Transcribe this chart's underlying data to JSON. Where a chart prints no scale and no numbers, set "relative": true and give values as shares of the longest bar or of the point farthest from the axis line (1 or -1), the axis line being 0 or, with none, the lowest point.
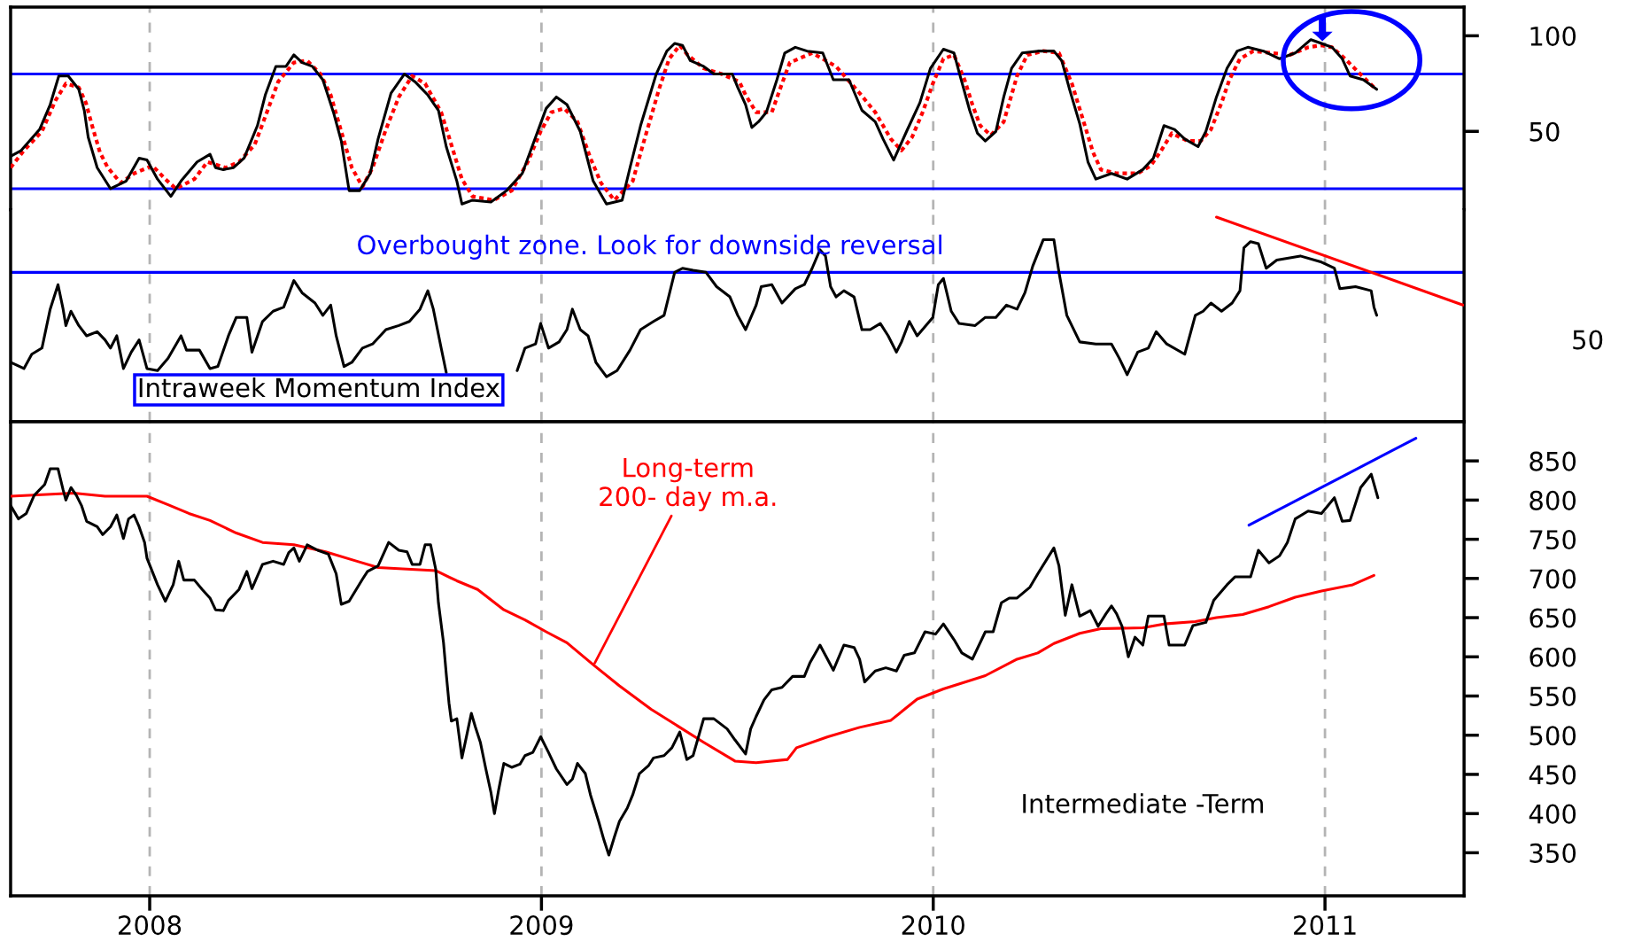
{
  "chart_data": [
    {
      "type": "line",
      "xlim": [
        2007.645,
        2011.355
      ],
      "ylim": [
        9,
        115
      ],
      "yticks": [
        50,
        100
      ],
      "xticks": [
        2008,
        2009,
        2010,
        2011
      ],
      "grid": "x",
      "tick_labels": "y",
      "ref_lines": [
        {
          "axis": "y",
          "value": 80,
          "color": "#0000ff"
        },
        {
          "axis": "y",
          "value": 20,
          "color": "#0000ff"
        }
      ],
      "series": [
        {
          "color": "#ff0000",
          "line_style": "dotted",
          "x": [
            2007.645,
            2007.679,
            2007.725,
            2007.759,
            2007.786,
            2007.819,
            2007.837,
            2007.853,
            2007.873,
            2007.893,
            2007.926,
            2007.96,
            2008.007,
            2008.04,
            2008.067,
            2008.114,
            2008.147,
            2008.194,
            2008.228,
            2008.268,
            2008.301,
            2008.328,
            2008.368,
            2008.402,
            2008.436,
            2008.462,
            2008.496,
            2008.516,
            2008.543,
            2008.569,
            2008.603,
            2008.636,
            2008.67,
            2008.703,
            2008.744,
            2008.77,
            2008.797,
            2008.824,
            2008.878,
            2008.924,
            2008.965,
            2008.998,
            2009.025,
            2009.058,
            2009.092,
            2009.125,
            2009.152,
            2009.186,
            2009.233,
            2009.259,
            2009.3,
            2009.326,
            2009.353,
            2009.373,
            2009.414,
            2009.46,
            2009.505,
            2009.521,
            2009.548,
            2009.588,
            2009.614,
            2009.634,
            2009.691,
            2009.752,
            2009.812,
            2009.852,
            2009.892,
            2009.919,
            2009.946,
            2009.973,
            2009.999,
            2010.026,
            2010.053,
            2010.08,
            2010.1,
            2010.12,
            2010.147,
            2010.18,
            2010.214,
            2010.24,
            2010.281,
            2010.321,
            2010.354,
            2010.381,
            2010.408,
            2010.428,
            2010.468,
            2010.522,
            2010.555,
            2010.582,
            2010.609,
            2010.649,
            2010.683,
            2010.709,
            2010.736,
            2010.756,
            2010.783,
            2010.817,
            2010.864,
            2010.91,
            2010.957,
            2010.991,
            2011.018,
            2011.051,
            2011.085,
            2011.125
          ],
          "values": [
            31,
            40,
            50,
            66,
            75,
            73,
            65,
            53,
            39,
            31,
            23,
            28,
            32,
            25,
            20,
            25,
            34,
            31,
            34,
            43,
            61,
            76,
            86,
            87,
            80,
            69,
            45,
            31,
            21,
            31,
            51,
            68,
            79,
            75,
            60,
            43,
            25,
            16,
            14,
            19,
            34,
            50,
            60,
            62,
            55,
            36,
            23,
            14,
            24,
            43,
            72,
            88,
            95,
            90,
            83,
            80,
            76,
            69,
            60,
            60,
            75,
            86,
            91,
            84,
            70,
            60,
            46,
            40,
            47,
            60,
            75,
            88,
            90,
            77,
            64,
            53,
            48,
            55,
            79,
            90,
            92,
            91,
            75,
            57,
            39,
            30,
            28,
            28,
            32,
            40,
            49,
            45,
            45,
            51,
            65,
            77,
            88,
            92,
            91,
            90,
            94,
            95,
            94,
            88,
            81,
            73
          ]
        },
        {
          "color": "#000000",
          "line_style": "solid",
          "x": [
            2007.645,
            2007.672,
            2007.719,
            2007.746,
            2007.768,
            2007.792,
            2007.819,
            2007.833,
            2007.843,
            2007.866,
            2007.9,
            2007.94,
            2007.973,
            2007.993,
            2008.02,
            2008.054,
            2008.08,
            2008.121,
            2008.154,
            2008.168,
            2008.188,
            2008.214,
            2008.241,
            2008.275,
            2008.295,
            2008.322,
            2008.348,
            2008.368,
            2008.389,
            2008.415,
            2008.442,
            2008.469,
            2008.489,
            2008.509,
            2008.536,
            2008.563,
            2008.583,
            2008.616,
            2008.65,
            2008.677,
            2008.71,
            2008.737,
            2008.757,
            2008.784,
            2008.797,
            2008.824,
            2008.871,
            2008.911,
            2008.951,
            2008.985,
            2009.012,
            2009.038,
            2009.065,
            2009.099,
            2009.132,
            2009.166,
            2009.206,
            2009.226,
            2009.253,
            2009.293,
            2009.32,
            2009.34,
            2009.36,
            2009.38,
            2009.414,
            2009.44,
            2009.487,
            2009.501,
            2009.521,
            2009.537,
            2009.554,
            2009.574,
            2009.601,
            2009.621,
            2009.648,
            2009.678,
            2009.718,
            2009.745,
            2009.785,
            2009.818,
            2009.852,
            2009.872,
            2009.899,
            2009.932,
            2009.966,
            2009.993,
            2010.026,
            2010.053,
            2010.066,
            2010.093,
            2010.113,
            2010.133,
            2010.16,
            2010.18,
            2010.2,
            2010.227,
            2010.267,
            2010.308,
            2010.328,
            2010.348,
            2010.374,
            2010.395,
            2010.415,
            2010.455,
            2010.495,
            2010.535,
            2010.562,
            2010.589,
            2010.616,
            2010.642,
            2010.676,
            2010.696,
            2010.723,
            2010.75,
            2010.776,
            2010.803,
            2010.843,
            2010.884,
            2010.924,
            2010.964,
            2010.991,
            2011.018,
            2011.044,
            2011.064,
            2011.098,
            2011.132
          ],
          "values": [
            37,
            40,
            51,
            64,
            79,
            79,
            72,
            61,
            47,
            31,
            20,
            24,
            36,
            35,
            25,
            16,
            24,
            34,
            38,
            31,
            30,
            31,
            36,
            53,
            69,
            84,
            84,
            90,
            86,
            84,
            77,
            60,
            45,
            19,
            19,
            28,
            46,
            70,
            80,
            76,
            69,
            61,
            42,
            24,
            12,
            14,
            13,
            19,
            28,
            47,
            62,
            68,
            64,
            50,
            24,
            12,
            14,
            31,
            53,
            80,
            92,
            96,
            95,
            87,
            84,
            80,
            80,
            73,
            64,
            52,
            55,
            60,
            77,
            91,
            94,
            92,
            91,
            77,
            77,
            61,
            55,
            46,
            35,
            50,
            65,
            83,
            93,
            91,
            81,
            61,
            49,
            45,
            50,
            68,
            83,
            91,
            92,
            92,
            87,
            72,
            54,
            34,
            25,
            28,
            25,
            30,
            36,
            53,
            51,
            46,
            42,
            50,
            68,
            83,
            92,
            94,
            92,
            88,
            91,
            98,
            96,
            94,
            88,
            79,
            77,
            72
          ]
        }
      ]
    },
    {
      "type": "line",
      "relative": true,
      "xlim": [
        2007.645,
        2011.355
      ],
      "xticks": [
        2008,
        2009,
        2010,
        2011
      ],
      "grid": "x",
      "tick_labels": "y",
      "ref_lines": [
        {
          "axis": "y",
          "value": 0.73,
          "color": "#0000ff"
        }
      ],
      "annotations": [
        "Overbought zone. Look for downside reversal",
        "Intraweek Momentum Index",
        "50"
      ],
      "series": [
        {
          "color": "#000000",
          "line_style": "solid",
          "x": [
            2007.645,
            2007.679,
            2007.699,
            2007.725,
            2007.746,
            2007.766,
            2007.779,
            2007.786,
            2007.799,
            2007.819,
            2007.839,
            2007.866,
            2007.886,
            2007.9,
            2007.916,
            2007.933,
            2007.953,
            2007.973,
            2007.993,
            2008.02,
            2008.047,
            2008.08,
            2008.094,
            2008.127,
            2008.154,
            2008.174,
            2008.201,
            2008.221,
            2008.248,
            2008.261,
            2008.288,
            2008.315,
            2008.342,
            2008.368,
            2008.389,
            2008.422,
            2008.442,
            2008.462,
            2008.476,
            2008.496,
            2008.516,
            2008.543,
            2008.569,
            2008.603,
            2008.636,
            2008.663,
            2008.69,
            2008.71,
            2008.724,
            2008.744,
            2008.757,
            2008.844,
            2008.938,
            2008.958,
            2008.985,
            2008.998,
            2009.018,
            2009.045,
            2009.065,
            2009.079,
            2009.099,
            2009.119,
            2009.139,
            2009.166,
            2009.193,
            2009.226,
            2009.253,
            2009.286,
            2009.313,
            2009.34,
            2009.36,
            2009.387,
            2009.42,
            2009.447,
            2009.481,
            2009.501,
            2009.521,
            2009.548,
            2009.561,
            2009.588,
            2009.614,
            2009.648,
            2009.671,
            2009.691,
            2009.711,
            2009.725,
            2009.738,
            2009.752,
            2009.772,
            2009.798,
            2009.818,
            2009.839,
            2009.865,
            2009.885,
            2009.906,
            2009.919,
            2009.939,
            2009.959,
            2009.986,
            2009.999,
            2010.013,
            2010.026,
            2010.046,
            2010.066,
            2010.107,
            2010.133,
            2010.16,
            2010.187,
            2010.214,
            2010.234,
            2010.254,
            2010.281,
            2010.308,
            2010.321,
            2010.341,
            2010.374,
            2010.415,
            2010.455,
            2010.475,
            2010.495,
            2010.522,
            2010.549,
            2010.569,
            2010.596,
            2010.642,
            2010.669,
            2010.689,
            2010.709,
            2010.736,
            2010.763,
            2010.783,
            2010.793,
            2010.81,
            2010.83,
            2010.85,
            2010.877,
            2010.937,
            2010.991,
            2011.024,
            2011.038,
            2011.078,
            2011.118,
            2011.125,
            2011.132
          ],
          "values": [
            0.29,
            0.26,
            0.33,
            0.36,
            0.55,
            0.67,
            0.55,
            0.47,
            0.54,
            0.47,
            0.42,
            0.44,
            0.4,
            0.36,
            0.42,
            0.26,
            0.34,
            0.4,
            0.26,
            0.25,
            0.31,
            0.42,
            0.35,
            0.35,
            0.26,
            0.27,
            0.42,
            0.51,
            0.51,
            0.34,
            0.49,
            0.54,
            0.56,
            0.69,
            0.63,
            0.58,
            0.52,
            0.57,
            0.42,
            0.27,
            0.29,
            0.36,
            0.38,
            0.45,
            0.47,
            0.49,
            0.55,
            0.64,
            0.55,
            0.36,
            0.24,
            null,
            0.25,
            0.36,
            0.38,
            0.48,
            0.36,
            0.39,
            0.45,
            0.55,
            0.45,
            0.42,
            0.29,
            0.22,
            0.25,
            0.35,
            0.45,
            0.49,
            0.52,
            0.73,
            0.75,
            0.74,
            0.73,
            0.66,
            0.61,
            0.52,
            0.45,
            0.57,
            0.66,
            0.67,
            0.58,
            0.65,
            0.67,
            0.75,
            0.84,
            0.81,
            0.66,
            0.61,
            0.64,
            0.61,
            0.45,
            0.45,
            0.48,
            0.42,
            0.34,
            0.39,
            0.49,
            0.42,
            0.48,
            0.51,
            0.67,
            0.7,
            0.54,
            0.48,
            0.47,
            0.51,
            0.51,
            0.57,
            0.55,
            0.63,
            0.76,
            0.89,
            0.89,
            0.73,
            0.52,
            0.39,
            0.38,
            0.38,
            0.31,
            0.23,
            0.34,
            0.36,
            0.44,
            0.38,
            0.33,
            0.52,
            0.54,
            0.58,
            0.54,
            0.58,
            0.64,
            0.85,
            0.88,
            0.87,
            0.75,
            0.79,
            0.81,
            0.78,
            0.75,
            0.65,
            0.66,
            0.64,
            0.56,
            0.52
          ]
        },
        {
          "color": "#ff0000",
          "line_style": "solid",
          "x": [
            2010.723,
            2011.352
          ],
          "values": [
            1.0,
            0.57
          ]
        }
      ]
    },
    {
      "type": "line",
      "xlim": [
        2007.645,
        2011.355
      ],
      "ylim": [
        295,
        900
      ],
      "yticks": [
        350,
        400,
        450,
        500,
        550,
        600,
        650,
        700,
        750,
        800,
        850
      ],
      "xticks": [
        2008,
        2009,
        2010,
        2011
      ],
      "grid": "x",
      "annotations": [
        {
          "text": "Long-term\n200- day m.a.",
          "x": 2009.136,
          "y": 592
        },
        "Intermediate -Term"
      ],
      "series": [
        {
          "color": "#ff0000",
          "line_style": "solid",
          "x": [
            2007.645,
            2007.806,
            2007.886,
            2007.993,
            2008.047,
            2008.1,
            2008.154,
            2008.221,
            2008.288,
            2008.368,
            2008.449,
            2008.529,
            2008.583,
            2008.73,
            2008.784,
            2008.837,
            2008.904,
            2008.958,
            2009.012,
            2009.065,
            2009.132,
            2009.199,
            2009.28,
            2009.347,
            2009.414,
            2009.494,
            2009.548,
            2009.628,
            2009.651,
            2009.731,
            2009.812,
            2009.892,
            2009.959,
            2010.026,
            2010.133,
            2010.214,
            2010.267,
            2010.308,
            2010.374,
            2010.428,
            2010.535,
            2010.589,
            2010.669,
            2010.723,
            2010.79,
            2010.857,
            2010.924,
            2010.991,
            2011.071,
            2011.125
          ],
          "values": [
            805,
            809,
            805,
            805,
            794,
            783,
            774,
            758,
            746,
            743,
            734,
            722,
            714,
            710,
            697,
            686,
            660,
            647,
            632,
            618,
            590,
            563,
            533,
            512,
            491,
            467,
            465,
            469,
            484,
            498,
            510,
            519,
            546,
            559,
            576,
            597,
            605,
            617,
            630,
            636,
            637,
            642,
            645,
            650,
            654,
            664,
            676,
            684,
            692,
            704
          ]
        },
        {
          "color": "#000000",
          "line_style": "solid",
          "x": [
            2007.645,
            2007.665,
            2007.685,
            2007.705,
            2007.732,
            2007.746,
            2007.766,
            2007.779,
            2007.786,
            2007.799,
            2007.813,
            2007.826,
            2007.839,
            2007.866,
            2007.88,
            2007.9,
            2007.916,
            2007.933,
            2007.946,
            2007.96,
            2007.973,
            2007.987,
            2007.993,
            2008.02,
            2008.04,
            2008.06,
            2008.074,
            2008.087,
            2008.114,
            2008.134,
            2008.154,
            2008.168,
            2008.188,
            2008.201,
            2008.228,
            2008.248,
            2008.261,
            2008.288,
            2008.315,
            2008.342,
            2008.355,
            2008.368,
            2008.382,
            2008.402,
            2008.429,
            2008.456,
            2008.476,
            2008.489,
            2008.509,
            2008.543,
            2008.556,
            2008.583,
            2008.61,
            2008.636,
            2008.657,
            2008.67,
            2008.69,
            2008.703,
            2008.717,
            2008.73,
            2008.737,
            2008.75,
            2008.757,
            2008.764,
            2008.77,
            2008.784,
            2008.797,
            2008.811,
            2008.821,
            2008.831,
            2008.844,
            2008.858,
            2008.871,
            2008.88,
            2008.891,
            2008.904,
            2008.924,
            2008.945,
            2008.958,
            2008.978,
            2008.998,
            2009.018,
            2009.038,
            2009.065,
            2009.079,
            2009.092,
            2009.112,
            2009.125,
            2009.146,
            2009.159,
            2009.172,
            2009.186,
            2009.199,
            2009.219,
            2009.233,
            2009.25,
            2009.273,
            2009.286,
            2009.313,
            2009.333,
            2009.353,
            2009.371,
            2009.387,
            2009.414,
            2009.44,
            2009.474,
            2009.494,
            2009.521,
            2009.534,
            2009.548,
            2009.568,
            2009.588,
            2009.614,
            2009.641,
            2009.671,
            2009.685,
            2009.711,
            2009.745,
            2009.772,
            2009.798,
            2009.812,
            2009.825,
            2009.852,
            2009.879,
            2009.906,
            2009.926,
            2009.952,
            2009.979,
            2010.006,
            2010.026,
            2010.053,
            2010.073,
            2010.1,
            2010.133,
            2010.153,
            2010.174,
            2010.194,
            2010.214,
            2010.247,
            2010.267,
            2010.308,
            2010.321,
            2010.337,
            2010.354,
            2010.374,
            2010.401,
            2010.421,
            2010.441,
            2010.455,
            2010.468,
            2010.482,
            2010.498,
            2010.515,
            2010.535,
            2010.549,
            2010.589,
            2010.602,
            2010.642,
            2010.663,
            2010.696,
            2010.716,
            2010.75,
            2010.77,
            2010.81,
            2010.83,
            2010.857,
            2010.884,
            2010.904,
            2010.924,
            2010.957,
            2010.991,
            2011.024,
            2011.044,
            2011.064,
            2011.091,
            2011.118,
            2011.135
          ],
          "values": [
            793,
            776,
            783,
            806,
            820,
            840,
            840,
            813,
            800,
            816,
            806,
            793,
            773,
            766,
            756,
            766,
            781,
            751,
            776,
            781,
            766,
            746,
            726,
            692,
            671,
            692,
            722,
            698,
            698,
            686,
            675,
            660,
            659,
            672,
            686,
            709,
            687,
            718,
            722,
            718,
            733,
            739,
            722,
            743,
            736,
            731,
            706,
            667,
            671,
            699,
            709,
            716,
            746,
            736,
            734,
            718,
            718,
            743,
            743,
            712,
            669,
            618,
            578,
            541,
            518,
            521,
            471,
            504,
            528,
            511,
            491,
            457,
            427,
            400,
            431,
            464,
            459,
            463,
            474,
            478,
            498,
            478,
            457,
            437,
            444,
            464,
            451,
            424,
            390,
            367,
            347,
            370,
            390,
            407,
            424,
            451,
            461,
            471,
            474,
            484,
            504,
            469,
            474,
            521,
            521,
            508,
            494,
            476,
            508,
            524,
            545,
            558,
            561,
            575,
            575,
            592,
            615,
            583,
            615,
            612,
            597,
            568,
            582,
            586,
            582,
            602,
            605,
            632,
            629,
            642,
            622,
            605,
            597,
            632,
            632,
            669,
            675,
            675,
            689,
            706,
            739,
            716,
            653,
            692,
            652,
            659,
            639,
            655,
            665,
            655,
            639,
            600,
            625,
            615,
            652,
            652,
            615,
            615,
            640,
            644,
            672,
            692,
            702,
            702,
            736,
            720,
            729,
            746,
            776,
            786,
            783,
            803,
            773,
            774,
            816,
            833,
            803
          ]
        },
        {
          "color": "#0000ff",
          "line_style": "solid",
          "x": [
            2010.806,
            2011.232
          ],
          "values": [
            768,
            879
          ]
        }
      ]
    }
  ]
}
